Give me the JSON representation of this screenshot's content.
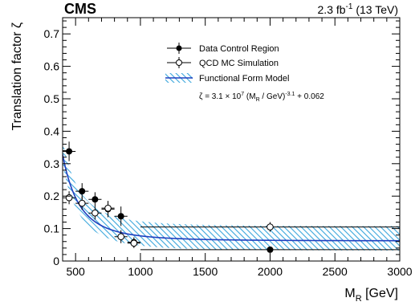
{
  "chart_data": {
    "type": "scatter",
    "experiment_label": "CMS",
    "lumi_label": "2.3 fb",
    "lumi_exponent": "-1",
    "energy_label": " (13 TeV)",
    "xlabel_main": "M",
    "xlabel_sub": "R",
    "xlabel_unit": " [GeV]",
    "ylabel": "Translation factor ζ",
    "xlim": [
      400,
      3000
    ],
    "ylim": [
      0,
      0.75
    ],
    "x_ticks": [
      500,
      1000,
      1500,
      2000,
      2500,
      3000
    ],
    "y_ticks": [
      0,
      0.1,
      0.2,
      0.3,
      0.4,
      0.5,
      0.6,
      0.7
    ],
    "legend_position": "top-center",
    "legend": [
      {
        "marker": "filled-circle",
        "label": "Data Control Region"
      },
      {
        "marker": "open-circle",
        "label": "QCD MC Simulation"
      },
      {
        "marker": "hatched-band",
        "label": "Functional Form Model"
      }
    ],
    "formula": {
      "prefix": "ζ = 3.1 × 10",
      "exp1": "7",
      "middle": " (M",
      "sub": "R",
      "after_sub": " / GeV)",
      "exp2": "-3.1",
      "suffix": " + 0.062"
    },
    "colors": {
      "band": "#3aa6dc",
      "curve": "#1f3fbf",
      "marker": "#000000"
    },
    "model": {
      "a": 31000000.0,
      "p": -3.1,
      "c": 0.062,
      "band_lower_offset": 0.03,
      "band_upper_offset": 0.045
    },
    "series": [
      {
        "name": "Data Control Region",
        "marker": "filled",
        "points": [
          {
            "x_low": 400,
            "x_high": 500,
            "y": 0.338,
            "y_err": 0.03
          },
          {
            "x_low": 500,
            "x_high": 600,
            "y": 0.215,
            "y_err": 0.025
          },
          {
            "x_low": 600,
            "x_high": 700,
            "y": 0.19,
            "y_err": 0.022
          },
          {
            "x_low": 700,
            "x_high": 800,
            "y": 0.16,
            "y_err": 0.025
          },
          {
            "x_low": 800,
            "x_high": 900,
            "y": 0.138,
            "y_err": 0.03
          },
          {
            "x_low": 900,
            "x_high": 1000,
            "y": 0.058,
            "y_err": 0.015
          },
          {
            "x_low": 1000,
            "x_high": 3000,
            "y": 0.035,
            "y_err": 0.0
          }
        ]
      },
      {
        "name": "QCD MC Simulation",
        "marker": "open",
        "points": [
          {
            "x_low": 400,
            "x_high": 500,
            "y": 0.195,
            "y_err": 0.02
          },
          {
            "x_low": 500,
            "x_high": 600,
            "y": 0.178,
            "y_err": 0.02
          },
          {
            "x_low": 600,
            "x_high": 700,
            "y": 0.148,
            "y_err": 0.02
          },
          {
            "x_low": 700,
            "x_high": 800,
            "y": 0.163,
            "y_err": 0.022
          },
          {
            "x_low": 800,
            "x_high": 900,
            "y": 0.075,
            "y_err": 0.02
          },
          {
            "x_low": 900,
            "x_high": 1000,
            "y": 0.055,
            "y_err": 0.015
          },
          {
            "x_low": 1000,
            "x_high": 3000,
            "y": 0.105,
            "y_err": 0.015
          }
        ]
      }
    ]
  }
}
